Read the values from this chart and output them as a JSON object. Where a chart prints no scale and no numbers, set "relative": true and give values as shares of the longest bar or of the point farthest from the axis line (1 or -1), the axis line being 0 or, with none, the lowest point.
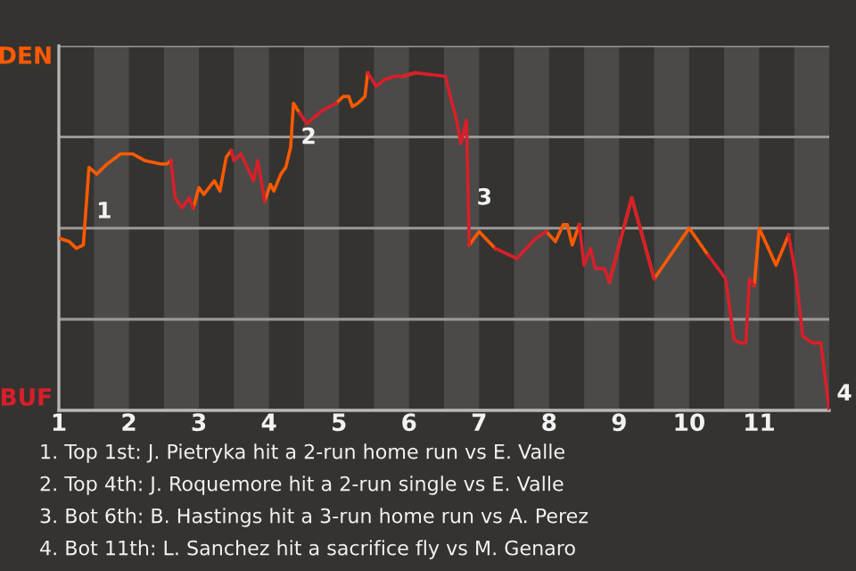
{
  "chart_data": {
    "type": "line",
    "relative": true,
    "x": [
      1.0,
      1.15,
      1.25,
      1.35,
      1.43,
      1.54,
      1.69,
      1.88,
      2.05,
      2.23,
      2.45,
      2.54,
      2.6,
      2.66,
      2.76,
      2.86,
      2.92,
      3.0,
      3.07,
      3.22,
      3.3,
      3.39,
      3.46,
      3.5,
      3.6,
      3.78,
      3.84,
      3.94,
      4.02,
      4.07,
      4.17,
      4.24,
      4.31,
      4.35,
      4.44,
      4.54,
      4.77,
      4.96,
      5.06,
      5.14,
      5.19,
      5.27,
      5.32,
      5.37,
      5.41,
      5.53,
      5.65,
      5.79,
      5.91,
      6.09,
      6.52,
      6.59,
      6.68,
      6.74,
      6.82,
      6.86,
      7.0,
      7.23,
      7.54,
      7.81,
      7.96,
      8.09,
      8.2,
      8.26,
      8.33,
      8.43,
      8.5,
      8.59,
      8.66,
      8.79,
      8.86,
      9.18,
      9.5,
      10.0,
      10.27,
      10.52,
      10.64,
      10.72,
      10.81,
      10.86,
      10.93,
      11.0,
      11.24,
      11.42,
      11.53,
      11.62,
      11.76,
      11.88,
      12.0
    ],
    "series": [
      {
        "name": "DEN",
        "color": "#ff5a00",
        "values": [
          0.51,
          0.5,
          0.48,
          0.49,
          0.72,
          0.7,
          0.73,
          0.76,
          0.76,
          0.74,
          0.73,
          0.73,
          0.74,
          null,
          null,
          null,
          0.6,
          0.66,
          0.64,
          0.68,
          0.65,
          0.75,
          0.77,
          null,
          null,
          null,
          null,
          0.62,
          0.67,
          0.65,
          0.7,
          0.72,
          0.78,
          0.91,
          0.88,
          null,
          null,
          0.91,
          0.93,
          0.93,
          0.9,
          0.91,
          0.92,
          0.93,
          1.0,
          null,
          null,
          null,
          0.99,
          1.0,
          null,
          null,
          null,
          null,
          null,
          0.49,
          0.53,
          0.48,
          null,
          null,
          0.53,
          0.5,
          0.55,
          0.55,
          0.49,
          0.55,
          null,
          null,
          null,
          null,
          0.38,
          0.63,
          0.39,
          0.54,
          0.46,
          null,
          null,
          null,
          null,
          null,
          0.37,
          0.54,
          0.43,
          0.52,
          null,
          null,
          null,
          null,
          null
        ]
      },
      {
        "name": "BUF",
        "color": "#d81f2a",
        "values": [
          null,
          null,
          null,
          null,
          null,
          null,
          null,
          null,
          null,
          null,
          null,
          null,
          0.74,
          0.63,
          0.6,
          0.63,
          0.6,
          null,
          null,
          null,
          null,
          null,
          0.77,
          0.74,
          0.76,
          0.68,
          0.74,
          0.62,
          null,
          null,
          null,
          null,
          null,
          null,
          0.88,
          0.85,
          0.89,
          0.91,
          null,
          null,
          null,
          null,
          null,
          null,
          1.0,
          0.96,
          0.98,
          0.99,
          0.99,
          1.0,
          0.99,
          0.93,
          0.86,
          0.79,
          0.86,
          0.49,
          null,
          0.48,
          0.45,
          0.51,
          0.53,
          null,
          null,
          null,
          null,
          0.55,
          0.43,
          0.48,
          0.42,
          0.42,
          0.38,
          0.63,
          0.39,
          null,
          0.46,
          0.39,
          0.21,
          0.2,
          0.2,
          0.39,
          0.37,
          null,
          null,
          0.52,
          0.39,
          0.22,
          0.2,
          0.2,
          0
        ]
      }
    ],
    "xlim": [
      1,
      12
    ],
    "xticks": [
      1,
      2,
      3,
      4,
      5,
      6,
      7,
      8,
      9,
      10,
      11
    ],
    "grid": "y",
    "marker": "none",
    "line_style": "solid",
    "bands": [
      {
        "axis": "x",
        "from": 1.5,
        "to": 2,
        "label": null,
        "color": "#4c4a48"
      },
      {
        "axis": "x",
        "from": 2.5,
        "to": 3,
        "label": null,
        "color": "#4c4a48"
      },
      {
        "axis": "x",
        "from": 3.5,
        "to": 4,
        "label": null,
        "color": "#4c4a48"
      },
      {
        "axis": "x",
        "from": 4.5,
        "to": 5,
        "label": null,
        "color": "#4c4a48"
      },
      {
        "axis": "x",
        "from": 5.5,
        "to": 6,
        "label": null,
        "color": "#4c4a48"
      },
      {
        "axis": "x",
        "from": 6.5,
        "to": 7,
        "label": null,
        "color": "#4c4a48"
      },
      {
        "axis": "x",
        "from": 7.5,
        "to": 8,
        "label": null,
        "color": "#4c4a48"
      },
      {
        "axis": "x",
        "from": 8.5,
        "to": 9,
        "label": null,
        "color": "#4c4a48"
      },
      {
        "axis": "x",
        "from": 9.5,
        "to": 10,
        "label": null,
        "color": "#4c4a48"
      },
      {
        "axis": "x",
        "from": 10.5,
        "to": 11,
        "label": null,
        "color": "#4c4a48"
      },
      {
        "axis": "x",
        "from": 11.5,
        "to": 12,
        "label": null,
        "color": "#4c4a48"
      }
    ],
    "annotations": [
      {
        "text": "1",
        "x": 1.43,
        "y": 0.61
      },
      {
        "text": "2",
        "x": 4.35,
        "y": 0.83
      },
      {
        "text": "3",
        "x": 6.86,
        "y": 0.65
      },
      {
        "text": "4",
        "x": 12,
        "y": 0.07
      },
      "1. Top 1st: J. Pietryka hit a 2-run home run vs E. Valle",
      "2. Top 4th: J. Roquemore hit a 2-run single vs E. Valle",
      "3. Bot 6th: B. Hastings hit a 3-run home run vs A. Perez",
      "4. Bot 11th: L. Sanchez hit a sacrifice fly vs M. Genaro"
    ]
  }
}
